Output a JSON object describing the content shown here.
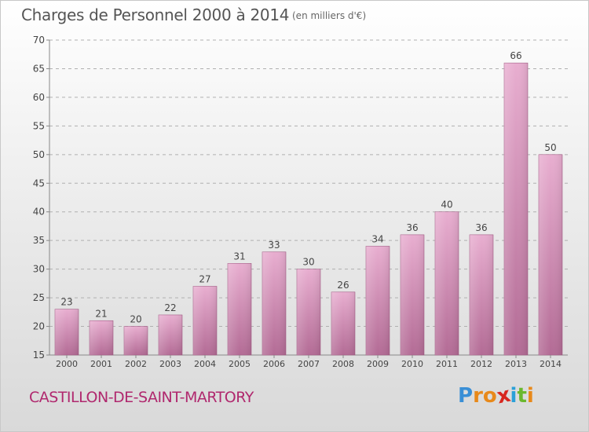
{
  "header": {
    "title": "Charges de Personnel 2000 à 2014",
    "unit": "(en milliers d'€)"
  },
  "footer": {
    "commune": "CASTILLON-DE-SAINT-MARTORY",
    "logo_letters": [
      "P",
      "r",
      "o",
      "x",
      "i",
      "t",
      "i"
    ],
    "logo_colors": [
      "#3a8fd6",
      "#e8891a",
      "#e8891a",
      "#d7261e",
      "#2aa0d8",
      "#6ab82e",
      "#e8891a"
    ]
  },
  "colors": {
    "bar_top": "#e8aed0",
    "bar_bottom": "#b36b95",
    "grid": "#b0b0b0",
    "axis_text": "#444444"
  },
  "chart_data": {
    "type": "bar",
    "title": "Charges de Personnel 2000 à 2014",
    "categories": [
      "2000",
      "2001",
      "2002",
      "2003",
      "2004",
      "2005",
      "2006",
      "2007",
      "2008",
      "2009",
      "2010",
      "2011",
      "2012",
      "2013",
      "2014"
    ],
    "values": [
      23,
      21,
      20,
      22,
      27,
      31,
      33,
      30,
      26,
      34,
      36,
      40,
      36,
      66,
      50
    ],
    "ylim": [
      15,
      70
    ],
    "yticks": [
      15,
      20,
      25,
      30,
      35,
      40,
      45,
      50,
      55,
      60,
      65,
      70
    ],
    "grid": true,
    "xlabel": "",
    "ylabel": ""
  }
}
